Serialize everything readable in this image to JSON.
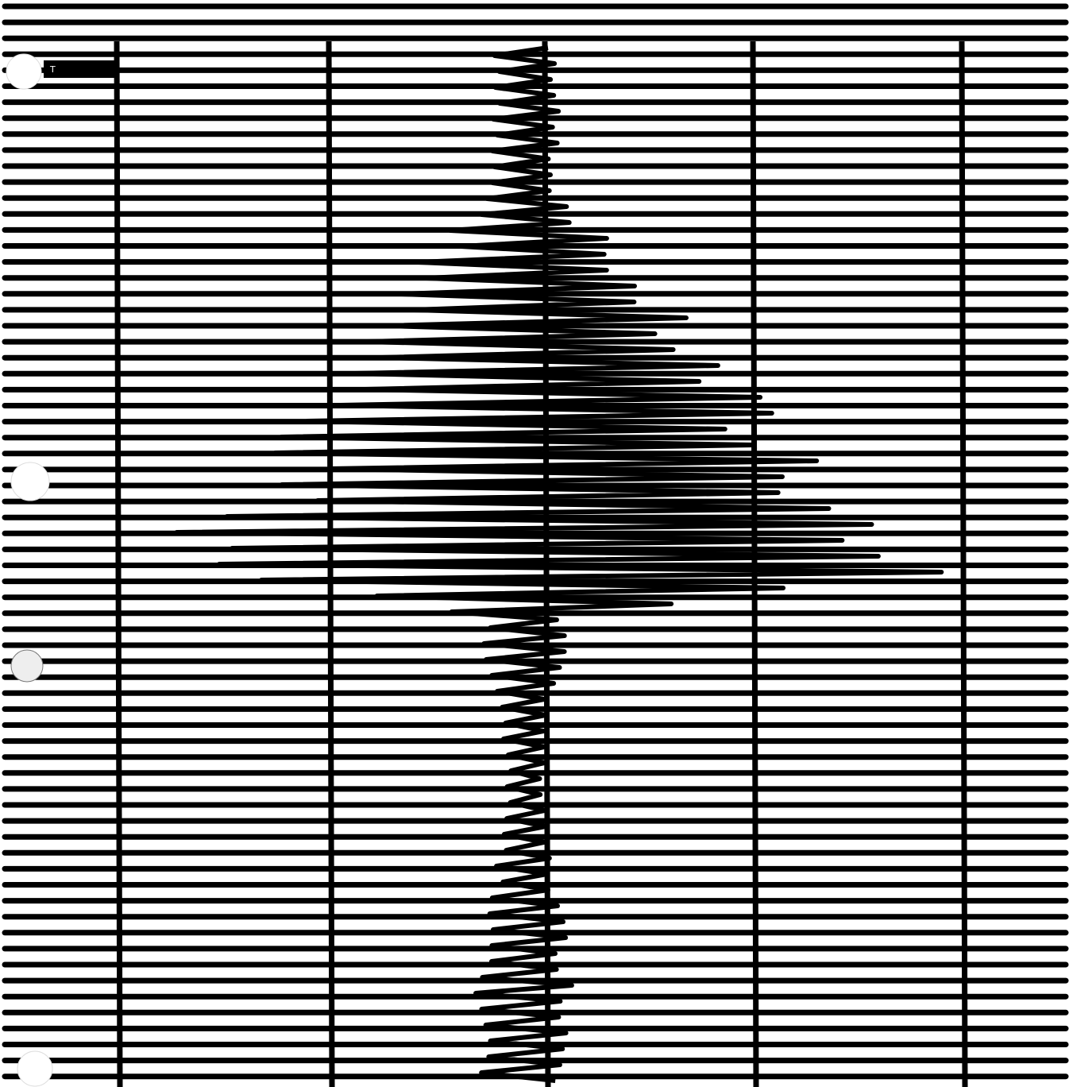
{
  "marker": {
    "label": "T"
  }
}
